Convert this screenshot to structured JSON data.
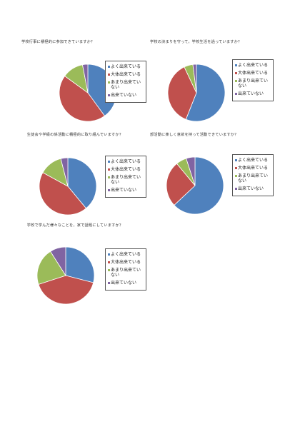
{
  "colors": {
    "よく出来ている": "#4F81BD",
    "大体出来ている": "#C0504D",
    "あまり出来ていない": "#9BBB59",
    "出来ていない": "#8064A2"
  },
  "chart_data": [
    {
      "type": "pie",
      "title": "学校行事に積極的に参加できていますか？",
      "categories": [
        "よく出来ている",
        "大体出来ている",
        "あまり出来ていない",
        "出来ていない"
      ],
      "values": [
        40,
        45,
        12,
        3
      ],
      "legend": "right"
    },
    {
      "type": "pie",
      "title": "学校の決まりを守って，学校生活を過っていますか？",
      "categories": [
        "よく出来ている",
        "大体出来ている",
        "あまり出来ていない",
        "出来ていない"
      ],
      "values": [
        56,
        37,
        5,
        2
      ],
      "legend": "right"
    },
    {
      "type": "pie",
      "title": "生徒会や学級の係活動に積極的に取り組んでいますか？",
      "categories": [
        "よく出来ている",
        "大体出来ている",
        "あまり出来ていない",
        "出来ていない"
      ],
      "values": [
        39,
        44,
        13,
        4
      ],
      "legend": "right"
    },
    {
      "type": "pie",
      "title": "部活動に楽しく意欲を持って活動できていますか？",
      "categories": [
        "よく出来ている",
        "大体出来ている",
        "あまり出来ていない",
        "出来ていない"
      ],
      "values": [
        63,
        26,
        6,
        5
      ],
      "legend": "right"
    },
    {
      "type": "pie",
      "title": "学校で学んだ様々なことを，家で話題にしていますか？",
      "categories": [
        "よく出来ている",
        "大体出来ている",
        "あまり出来ていない",
        "出来ていない"
      ],
      "values": [
        29,
        41,
        21,
        9
      ],
      "legend": "right"
    }
  ]
}
